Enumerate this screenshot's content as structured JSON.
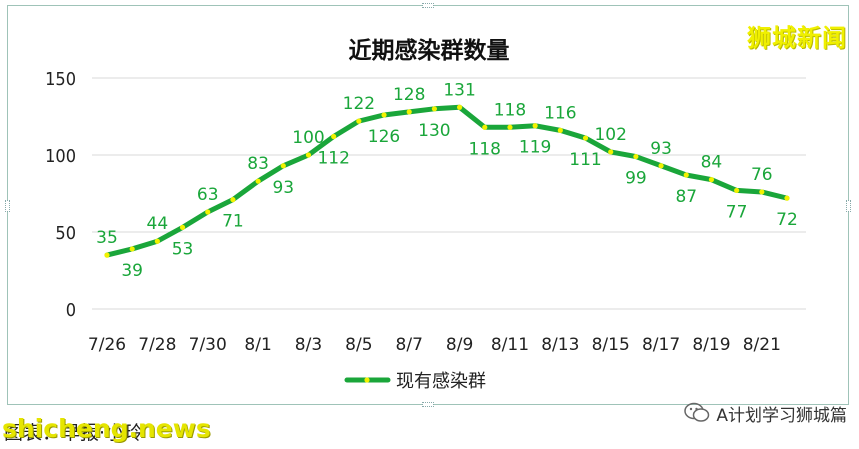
{
  "brand": "狮城新闻",
  "footer": {
    "credit": "图表：早报·小玲",
    "watermark": "shicheng.news",
    "wechat_label": "A计划学习狮城篇"
  },
  "colors": {
    "line": "#1aa63a",
    "marker": "#f2f200",
    "label": "#1aa63a",
    "grid": "#d9d9d9",
    "axis_text": "#222222"
  },
  "chart_data": {
    "type": "line",
    "title": "近期感染群数量",
    "xlabel": "",
    "ylabel": "",
    "ylim": [
      0,
      150
    ],
    "yticks": [
      0,
      50,
      100,
      150
    ],
    "grid": "horizontal",
    "legend": "bottom",
    "x": [
      "7/26",
      "7/27",
      "7/28",
      "7/29",
      "7/30",
      "7/31",
      "8/1",
      "8/2",
      "8/3",
      "8/4",
      "8/5",
      "8/6",
      "8/7",
      "8/8",
      "8/9",
      "8/10",
      "8/11",
      "8/12",
      "8/13",
      "8/14",
      "8/15",
      "8/16",
      "8/17",
      "8/18",
      "8/19",
      "8/20",
      "8/21",
      "8/22"
    ],
    "xtick_labels": [
      "7/26",
      "7/28",
      "7/30",
      "8/1",
      "8/3",
      "8/5",
      "8/7",
      "8/9",
      "8/11",
      "8/13",
      "8/15",
      "8/17",
      "8/19",
      "8/21"
    ],
    "series": [
      {
        "name": "现有感染群",
        "values": [
          35,
          39,
          44,
          53,
          63,
          71,
          83,
          93,
          100,
          112,
          122,
          126,
          128,
          130,
          131,
          118,
          118,
          119,
          116,
          111,
          102,
          99,
          93,
          87,
          84,
          77,
          76,
          72
        ]
      }
    ]
  }
}
